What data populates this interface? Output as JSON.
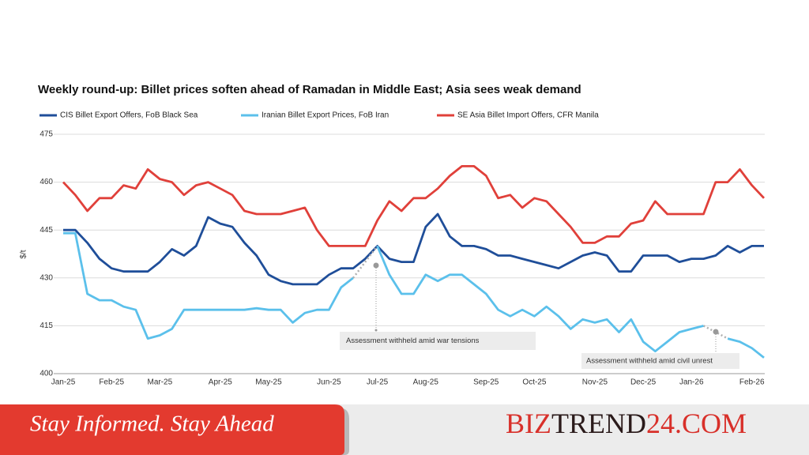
{
  "chart_data": {
    "type": "line",
    "title": "Weekly round-up: Billet prices soften ahead of Ramadan in Middle East; Asia sees weak demand",
    "ylabel": "$/t",
    "categories": [
      "Jan-25",
      null,
      null,
      null,
      "Feb-25",
      null,
      null,
      null,
      "Mar-25",
      null,
      null,
      null,
      null,
      "Apr-25",
      null,
      null,
      null,
      "May-25",
      null,
      null,
      null,
      null,
      "Jun-25",
      null,
      null,
      null,
      "Jul-25",
      null,
      null,
      null,
      "Aug-25",
      null,
      null,
      null,
      null,
      "Sep-25",
      null,
      null,
      null,
      "Oct-25",
      null,
      null,
      null,
      null,
      "Nov-25",
      null,
      null,
      null,
      "Dec-25",
      null,
      null,
      null,
      "Jan-26",
      null,
      null,
      null,
      null,
      "Feb-26",
      null
    ],
    "series": [
      {
        "name": "CIS Billet Export Offers, FoB Black Sea",
        "color": "#1f4e99",
        "values": [
          445,
          445,
          441,
          436,
          433,
          432,
          432,
          432,
          435,
          439,
          437,
          440,
          449,
          447,
          446,
          441,
          437,
          431,
          429,
          428,
          428,
          428,
          431,
          433,
          433,
          436,
          440,
          436,
          435,
          435,
          446,
          450,
          443,
          440,
          440,
          439,
          437,
          437,
          436,
          435,
          434,
          433,
          435,
          437,
          438,
          437,
          432,
          432,
          437,
          437,
          437,
          435,
          436,
          436,
          437,
          440,
          438,
          440,
          440
        ]
      },
      {
        "name": "Iranian Billet Export Prices, FoB Iran",
        "color": "#5bc0eb",
        "values": [
          444,
          444,
          425,
          423,
          423,
          421,
          420,
          411,
          412,
          414,
          420,
          420,
          420,
          420,
          420,
          420,
          420.5,
          420,
          420,
          416,
          419,
          420,
          420,
          427,
          430,
          null,
          440,
          431,
          425,
          425,
          431,
          429,
          431,
          431,
          428,
          425,
          420,
          418,
          420,
          418,
          421,
          418,
          414,
          417,
          416,
          417,
          413,
          417,
          410,
          407,
          410,
          413,
          414,
          415,
          null,
          411,
          410,
          408,
          405
        ]
      },
      {
        "name": "SE Asia Billet Import Offers, CFR Manila",
        "color": "#e0403a",
        "values": [
          460,
          456,
          451,
          455,
          455,
          459,
          458,
          464,
          461,
          460,
          456,
          459,
          460,
          458,
          456,
          451,
          450,
          450,
          450,
          451,
          452,
          445,
          440,
          440,
          440,
          440,
          448,
          454,
          451,
          455,
          455,
          458,
          462,
          465,
          465,
          462,
          455,
          456,
          452,
          455,
          454,
          450,
          446,
          441,
          441,
          443,
          443,
          447,
          448,
          454,
          450,
          450,
          450,
          450,
          460,
          460,
          464,
          459,
          455
        ]
      }
    ],
    "annotations": [
      "Assessment withheld amid war tensions",
      "Assessment withheld amid civil unrest"
    ],
    "ylim": [
      400,
      475
    ],
    "yticks": [
      400,
      415,
      430,
      445,
      460,
      475
    ],
    "grid": true
  },
  "banner": {
    "tagline": "Stay Informed. Stay Ahead",
    "brand": [
      "BIZ",
      "TREND",
      "24.COM"
    ]
  }
}
